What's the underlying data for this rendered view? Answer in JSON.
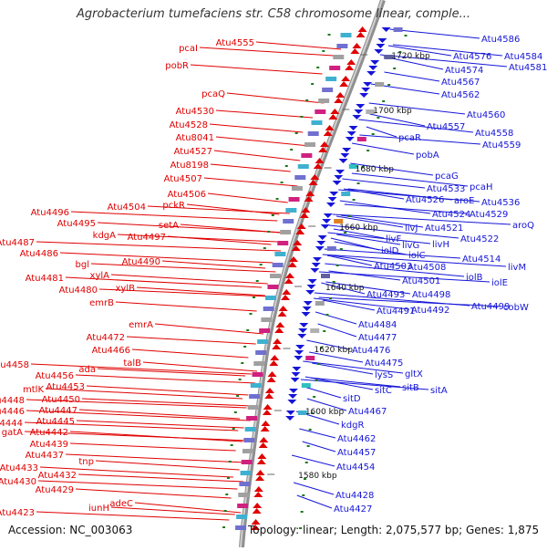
{
  "title": "Agrobacterium tumefaciens str. C58 chromosome linear, comple...",
  "accession": "Accession: NC_003063",
  "summary": "Topology: linear; Length: 2,075,577 bp; Genes: 1,875",
  "colors": {
    "forward": "#e00000",
    "reverse": "#1515d8",
    "backbone": "#8f8f8f",
    "tick": "#1a7a1a"
  },
  "scale_ticks": [
    "1720 kbp",
    "1700 kbp",
    "1680 kbp",
    "1660 kbp",
    "1640 kbp",
    "1620 kbp",
    "1600 kbp",
    "1580 kbp"
  ],
  "left_labels": [
    "Atu4555",
    "pcaI",
    "pobR",
    "pcaQ",
    "Atu4530",
    "Atu4528",
    "Atu8041",
    "Atu4527",
    "Atu8198",
    "Atu4507",
    "Atu4506",
    "pckR",
    "Atu4504",
    "setA",
    "Atu4496",
    "Atu4495",
    "kdgA",
    "Atu4497",
    "Atu4487",
    "Atu4486",
    "Atu4490",
    "bgl",
    "xylA",
    "Atu4481",
    "Atu4480",
    "xylB",
    "emrB",
    "emrA",
    "Atu4472",
    "Atu4466",
    "talB",
    "Atu4458",
    "ada",
    "Atu4456",
    "Atu4453",
    "mtlK",
    "Atu4450",
    "Atu4448",
    "Atu4447",
    "Atu4446",
    "Atu4445",
    "Atu4444",
    "gatA",
    "Atu4442",
    "Atu4439",
    "Atu4437",
    "tnp",
    "Atu4433",
    "Atu4432",
    "Atu4430",
    "Atu4429",
    "adeC",
    "iunH",
    "Atu4423"
  ],
  "right_labels": [
    "Atu4586",
    "Atu4576",
    "Atu4584",
    "Atu4581",
    "Atu4574",
    "Atu4567",
    "Atu4562",
    "Atu4560",
    "Atu4557",
    "Atu4558",
    "Atu4559",
    "pcaR",
    "pobA",
    "pcaG",
    "pcaH",
    "Atu4533",
    "Atu4526",
    "aroE",
    "Atu4536",
    "Atu4524",
    "Atu4529",
    "aroQ",
    "livJ",
    "Atu4521",
    "Atu4522",
    "livF",
    "livG",
    "livH",
    "iolD",
    "iolC",
    "Atu4514",
    "Atu4503",
    "Atu4508",
    "livM",
    "iolB",
    "Atu4501",
    "iolE",
    "Atu4493",
    "Atu4498",
    "Atu4499",
    "cobW",
    "Atu4491",
    "Atu4492",
    "Atu4484",
    "Atu4477",
    "Atu4476",
    "Atu4475",
    "lysS",
    "gltX",
    "sitC",
    "sitB",
    "sitA",
    "sitD",
    "Atu4467",
    "kdgR",
    "Atu4462",
    "Atu4457",
    "Atu4454",
    "Atu4428",
    "Atu4427"
  ]
}
